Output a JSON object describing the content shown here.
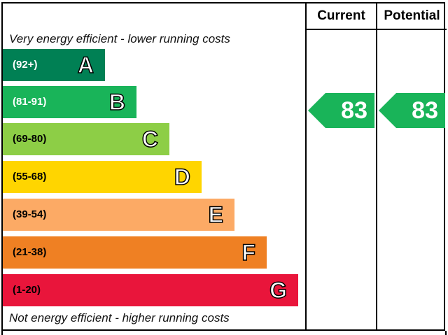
{
  "chart_data": {
    "type": "bar",
    "header": {
      "current": "Current",
      "potential": "Potential"
    },
    "top_note": "Very energy efficient - lower running costs",
    "bottom_note": "Not energy efficient - higher running costs",
    "bands": [
      {
        "letter": "A",
        "range": "(92+)",
        "color": "#008054",
        "text": "#ffffff"
      },
      {
        "letter": "B",
        "range": "(81-91)",
        "color": "#19b459",
        "text": "#ffffff"
      },
      {
        "letter": "C",
        "range": "(69-80)",
        "color": "#8dce46",
        "text": "#000000"
      },
      {
        "letter": "D",
        "range": "(55-68)",
        "color": "#ffd500",
        "text": "#000000"
      },
      {
        "letter": "E",
        "range": "(39-54)",
        "color": "#fcaa65",
        "text": "#000000"
      },
      {
        "letter": "F",
        "range": "(21-38)",
        "color": "#ef8023",
        "text": "#000000"
      },
      {
        "letter": "G",
        "range": "(1-20)",
        "color": "#e9153b",
        "text": "#000000"
      }
    ],
    "current": {
      "value": "83",
      "band": "B",
      "color": "#19b459"
    },
    "potential": {
      "value": "83",
      "band": "B",
      "color": "#19b459"
    }
  }
}
